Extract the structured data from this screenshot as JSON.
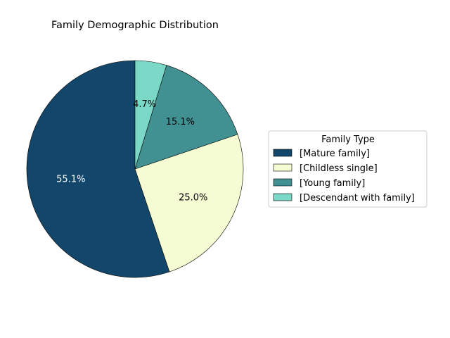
{
  "chart_data": {
    "type": "pie",
    "title": "Family Demographic Distribution",
    "start_angle_deg": 90,
    "direction": "counterclockwise",
    "slices": [
      {
        "label": "[Mature family]",
        "value": 55.1,
        "pct_label": "55.1%",
        "color": "#12476B",
        "text_color": "#ffffff"
      },
      {
        "label": "[Childless single]",
        "value": 25.0,
        "pct_label": "25.0%",
        "color": "#F5FBD2",
        "text_color": "#000000"
      },
      {
        "label": "[Young family]",
        "value": 15.1,
        "pct_label": "15.1%",
        "color": "#419193",
        "text_color": "#000000"
      },
      {
        "label": "[Descendant with family]",
        "value": 4.7,
        "pct_label": "4.7%",
        "color": "#7BD8C6",
        "text_color": "#000000"
      }
    ],
    "legend": {
      "title": "Family Type",
      "placement": "right"
    }
  }
}
